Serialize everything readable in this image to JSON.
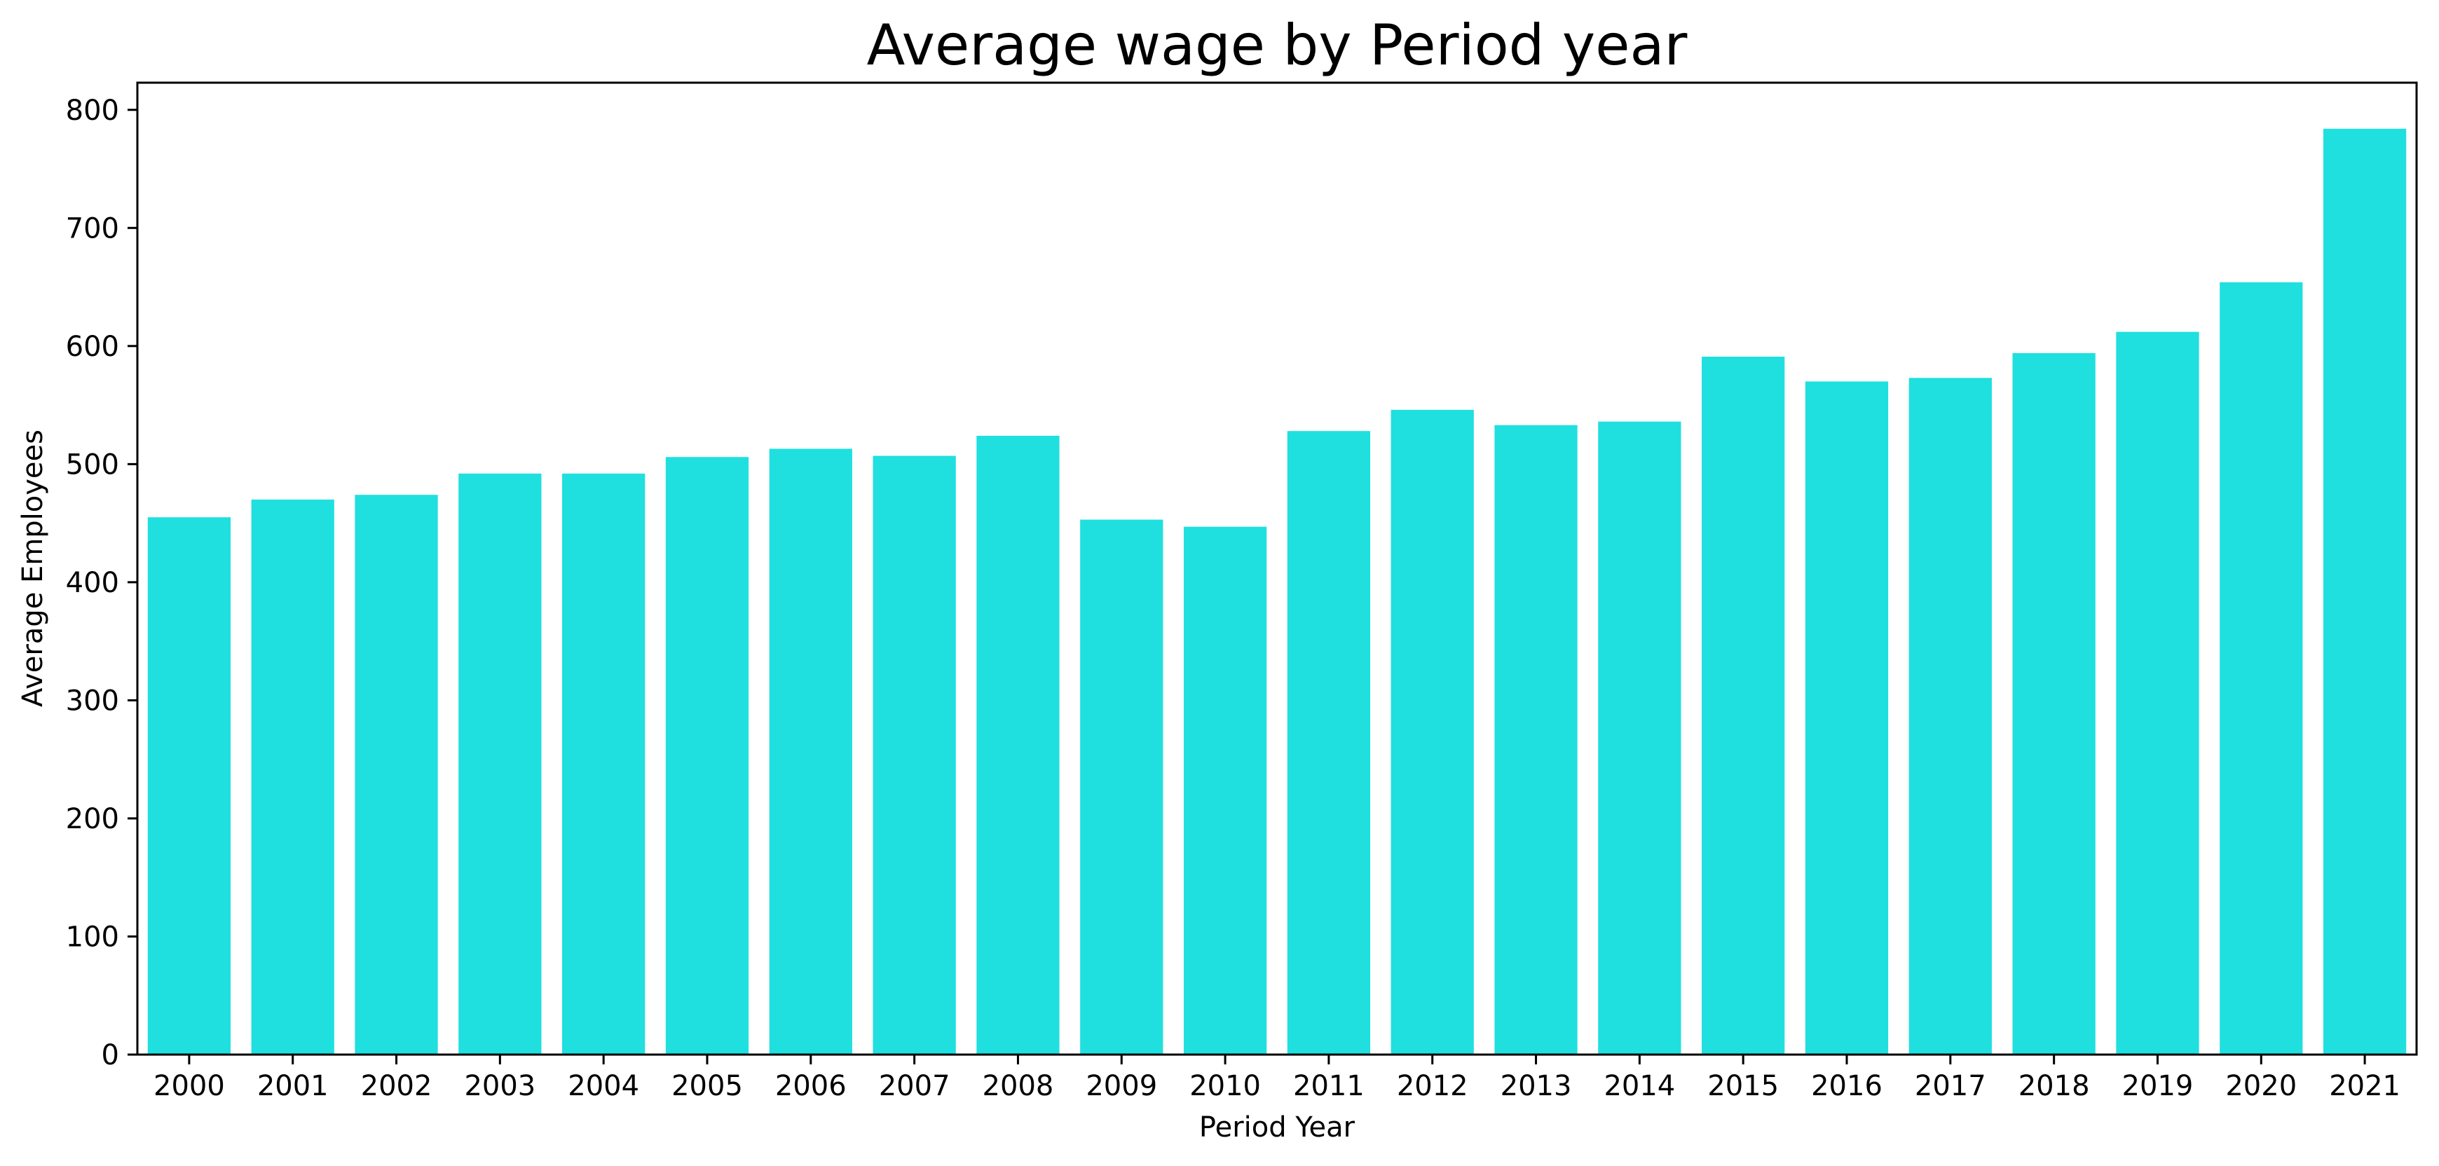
{
  "chart_data": {
    "type": "bar",
    "title": "Average wage by Period year",
    "xlabel": "Period Year",
    "ylabel": "Average Employees",
    "categories": [
      "2000",
      "2001",
      "2002",
      "2003",
      "2004",
      "2005",
      "2006",
      "2007",
      "2008",
      "2009",
      "2010",
      "2011",
      "2012",
      "2013",
      "2014",
      "2015",
      "2016",
      "2017",
      "2018",
      "2019",
      "2020",
      "2021"
    ],
    "values": [
      455,
      470,
      474,
      492,
      492,
      506,
      513,
      507,
      524,
      453,
      447,
      528,
      546,
      533,
      536,
      591,
      570,
      573,
      594,
      612,
      654,
      784
    ],
    "ylim": [
      0,
      823
    ],
    "yticks": [
      0,
      100,
      200,
      300,
      400,
      500,
      600,
      700,
      800
    ],
    "bar_color": "#20dfdf",
    "grid": false,
    "legend": "none"
  }
}
